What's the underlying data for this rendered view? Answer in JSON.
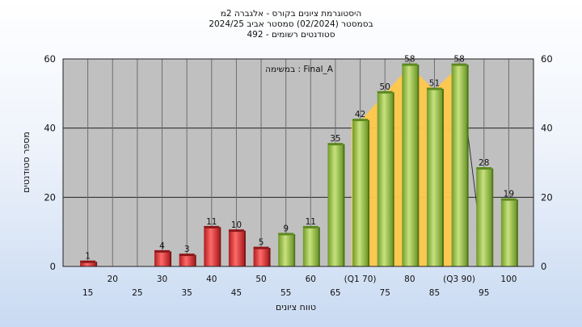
{
  "chart_data": {
    "type": "bar",
    "title_lines": [
      "היסטוגרמת ציונים בקורס - אלגברה 2מ",
      "בסמסטר  (02/2024)  סמסטר אביב 2024/25",
      "סטודנטים רשומים - 492"
    ],
    "xlabel": "טווח ציונים",
    "ylabel": "מספר סטודנטים",
    "ylim": [
      0,
      60
    ],
    "yticks": [
      0,
      20,
      40,
      60
    ],
    "grid": true,
    "annotation": "במשימה : Final_A",
    "categories": [
      "15",
      "20",
      "25",
      "30",
      "35",
      "40",
      "45",
      "50",
      "55",
      "60",
      "65",
      "70",
      "75",
      "80",
      "85",
      "90",
      "95",
      "100"
    ],
    "tick_labels": [
      "15",
      "20",
      "25",
      "30",
      "35",
      "40",
      "45",
      "50",
      "55",
      "60",
      "65",
      "(Q1 70)",
      "75",
      "80",
      "85",
      "(Q3 90)",
      "95",
      "100"
    ],
    "values": [
      1,
      0,
      0,
      4,
      3,
      11,
      10,
      5,
      9,
      11,
      35,
      42,
      50,
      58,
      51,
      58,
      28,
      19
    ],
    "data_labels": [
      "1",
      "",
      "",
      "4",
      "3",
      "11",
      "10",
      "5",
      "9",
      "11",
      "35",
      "42",
      "50",
      "58",
      "51",
      "58",
      "28",
      "19"
    ],
    "fail_color": "#e0393b",
    "pass_color": "#8fbf3f",
    "iqr_color": "#ffc84a",
    "quartile_q1": 70,
    "quartile_q3": 90
  }
}
